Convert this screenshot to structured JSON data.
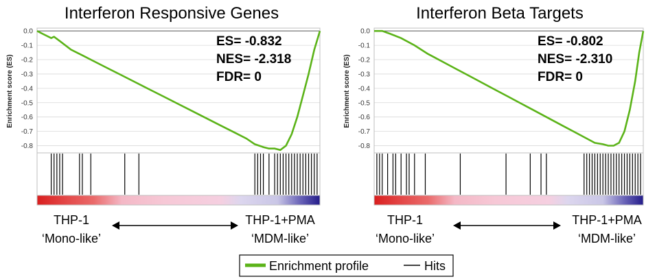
{
  "chart_data": [
    {
      "type": "line",
      "title": "Interferon Responsive Genes",
      "ylabel": "Enrichment score (ES)",
      "ylim": [
        -0.85,
        0.02
      ],
      "yticks": [
        "0.0",
        "-0.1",
        "-0.2",
        "-0.3",
        "-0.4",
        "-0.5",
        "-0.6",
        "-0.7",
        "-0.8"
      ],
      "stats": [
        "ES= -0.832",
        "NES= -2.318",
        "FDR= 0"
      ],
      "series": [
        {
          "name": "Enrichment profile",
          "x": [
            0,
            0.02,
            0.05,
            0.06,
            0.08,
            0.12,
            0.16,
            0.2,
            0.25,
            0.3,
            0.35,
            0.4,
            0.45,
            0.5,
            0.55,
            0.6,
            0.65,
            0.7,
            0.74,
            0.77,
            0.8,
            0.82,
            0.84,
            0.86,
            0.88,
            0.9,
            0.92,
            0.94,
            0.96,
            0.98,
            1.0
          ],
          "y": [
            0,
            -0.02,
            -0.05,
            -0.04,
            -0.07,
            -0.13,
            -0.17,
            -0.21,
            -0.26,
            -0.31,
            -0.36,
            -0.41,
            -0.46,
            -0.51,
            -0.56,
            -0.61,
            -0.66,
            -0.71,
            -0.75,
            -0.79,
            -0.81,
            -0.82,
            -0.82,
            -0.83,
            -0.8,
            -0.72,
            -0.6,
            -0.45,
            -0.3,
            -0.13,
            0.0
          ]
        }
      ],
      "hits": [
        0.05,
        0.06,
        0.07,
        0.08,
        0.09,
        0.15,
        0.16,
        0.19,
        0.31,
        0.36,
        0.77,
        0.78,
        0.79,
        0.8,
        0.82,
        0.84,
        0.85,
        0.86,
        0.87,
        0.88,
        0.89,
        0.9,
        0.91,
        0.92,
        0.93,
        0.94,
        0.95,
        0.96,
        0.97,
        0.98,
        0.99
      ]
    },
    {
      "type": "line",
      "title": "Interferon Beta Targets",
      "ylabel": "Enrichment score (ES)",
      "ylim": [
        -0.85,
        0.02
      ],
      "yticks": [
        "0.0",
        "-0.1",
        "-0.2",
        "-0.3",
        "-0.4",
        "-0.5",
        "-0.6",
        "-0.7",
        "-0.8"
      ],
      "stats": [
        "ES= -0.802",
        "NES= -2.310",
        "FDR= 0"
      ],
      "series": [
        {
          "name": "Enrichment profile",
          "x": [
            0,
            0.03,
            0.06,
            0.1,
            0.15,
            0.2,
            0.25,
            0.3,
            0.35,
            0.4,
            0.45,
            0.5,
            0.55,
            0.6,
            0.65,
            0.7,
            0.74,
            0.78,
            0.82,
            0.85,
            0.87,
            0.89,
            0.9,
            0.91,
            0.93,
            0.95,
            0.97,
            0.985,
            1.0
          ],
          "y": [
            0,
            0.0,
            -0.02,
            -0.05,
            -0.1,
            -0.16,
            -0.21,
            -0.26,
            -0.31,
            -0.36,
            -0.41,
            -0.46,
            -0.51,
            -0.56,
            -0.61,
            -0.66,
            -0.7,
            -0.74,
            -0.78,
            -0.79,
            -0.8,
            -0.8,
            -0.79,
            -0.78,
            -0.7,
            -0.55,
            -0.35,
            -0.15,
            0.0
          ]
        }
      ],
      "hits": [
        0.01,
        0.02,
        0.03,
        0.05,
        0.07,
        0.08,
        0.1,
        0.12,
        0.13,
        0.15,
        0.19,
        0.32,
        0.49,
        0.58,
        0.62,
        0.64,
        0.78,
        0.79,
        0.8,
        0.81,
        0.82,
        0.83,
        0.84,
        0.85,
        0.86,
        0.87,
        0.88,
        0.89,
        0.9,
        0.91,
        0.92,
        0.93,
        0.94,
        0.95,
        0.96,
        0.97,
        0.98,
        0.99
      ]
    }
  ],
  "annotations": [
    {
      "left_line1": "THP-1",
      "left_line2": "‘Mono-like’",
      "right_line1": "THP-1+PMA",
      "right_line2": "‘MDM-like’"
    },
    {
      "left_line1": "THP-1",
      "left_line2": "‘Mono-like’",
      "right_line1": "THP-1+PMA",
      "right_line2": "‘MDM-like’"
    }
  ],
  "legend": {
    "profile_label": "Enrichment profile",
    "hits_label": "Hits",
    "profile_color": "#5bb318",
    "hits_color": "#000000"
  },
  "colors": {
    "line": "#5bb318",
    "grid": "#d8d8d8",
    "frame": "#bfbfbf"
  }
}
